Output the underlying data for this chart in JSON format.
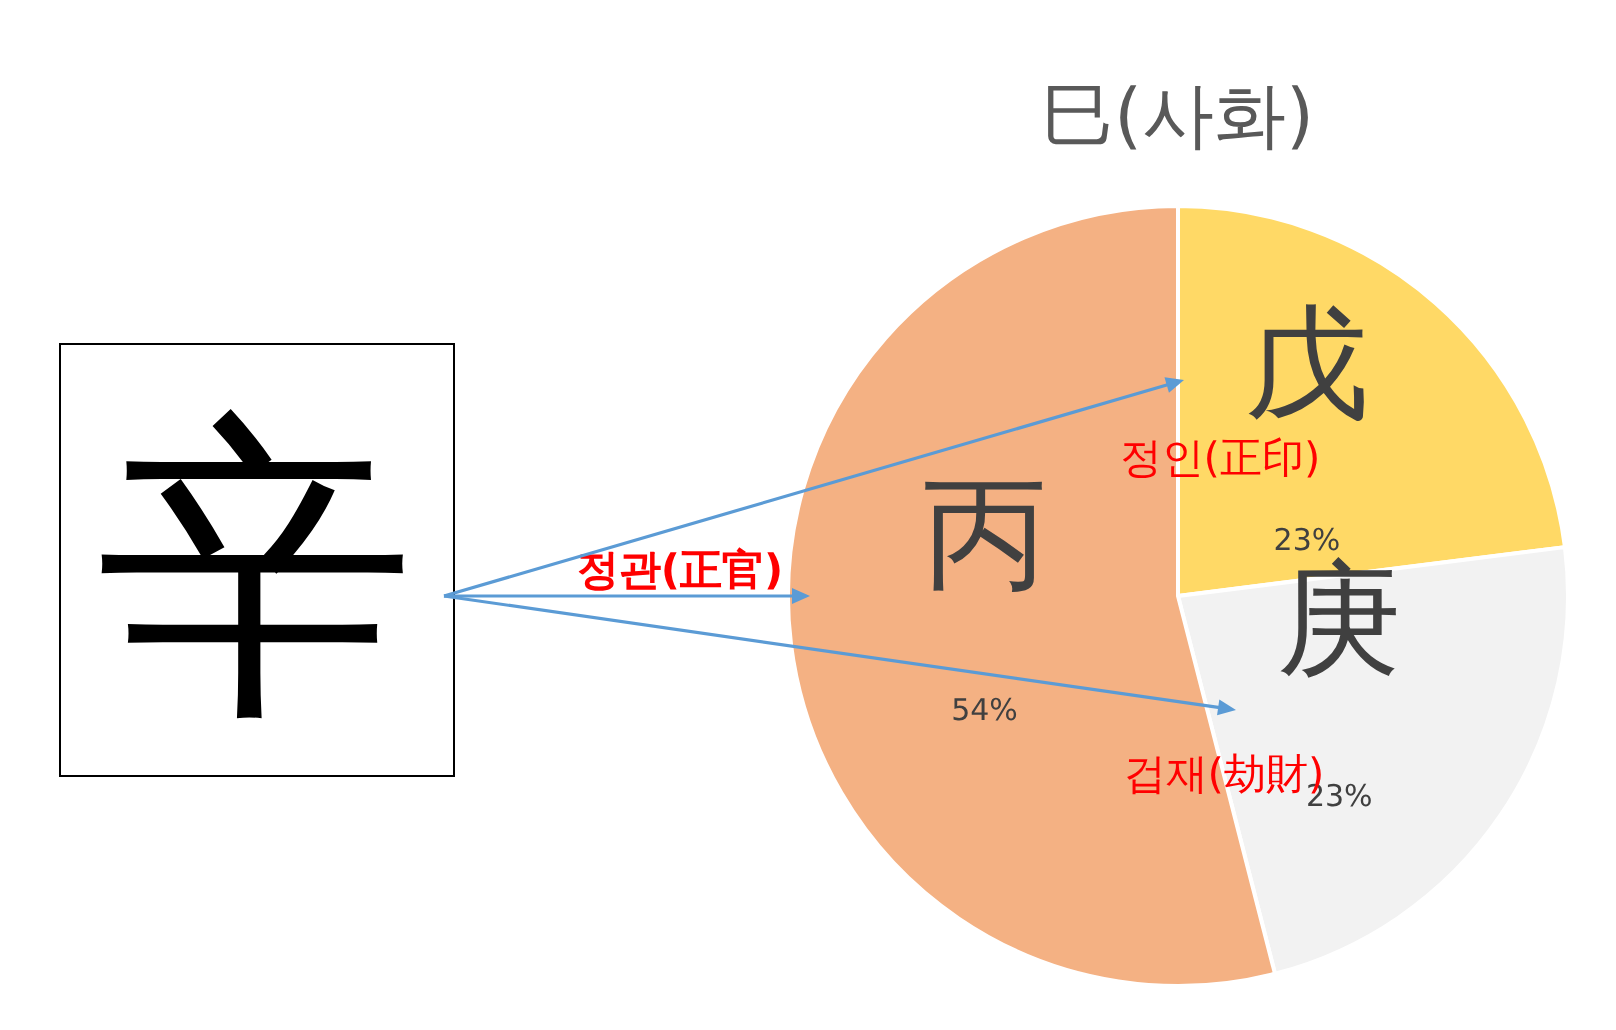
{
  "chart_data": {
    "type": "pie",
    "title": "巳(사화)",
    "categories": [
      "戊",
      "庚",
      "丙"
    ],
    "values": [
      23,
      23,
      54
    ],
    "colors": [
      "#ffd966",
      "#f2f2f2",
      "#f4b183"
    ],
    "value_labels": [
      "23%",
      "23%",
      "54%"
    ],
    "annotations": [
      "辛",
      "정관(正官)",
      "정인(正印)",
      "겁재(劫財)"
    ]
  }
}
